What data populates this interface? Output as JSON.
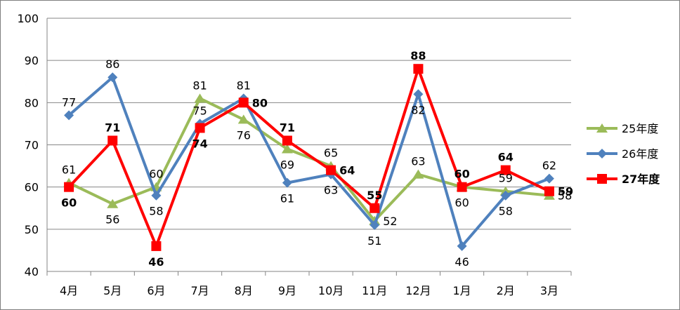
{
  "chart_data": {
    "type": "line",
    "categories": [
      "4月",
      "5月",
      "6月",
      "7月",
      "8月",
      "9月",
      "10月",
      "11月",
      "12月",
      "1月",
      "2月",
      "3月"
    ],
    "ylim": [
      40,
      100
    ],
    "yticks": [
      40,
      50,
      60,
      70,
      80,
      90,
      100
    ],
    "grid": true,
    "legend_position": "right",
    "series": [
      {
        "name": "25年度",
        "values": [
          61,
          56,
          60,
          81,
          76,
          69,
          65,
          52,
          63,
          60,
          59,
          58
        ],
        "color": "#9bbb59",
        "marker": "triangle",
        "label_bold": false,
        "label_pos": [
          "above",
          "below",
          "above",
          "above",
          "below",
          "below",
          "above",
          "right",
          "above",
          "below",
          "above",
          "right"
        ]
      },
      {
        "name": "26年度",
        "values": [
          77,
          86,
          58,
          75,
          81,
          61,
          63,
          51,
          82,
          46,
          58,
          62
        ],
        "color": "#4f81bd",
        "marker": "diamond",
        "label_bold": false,
        "label_pos": [
          "above",
          "above",
          "below",
          "above",
          "above",
          "below",
          "below",
          "below",
          "below",
          "below",
          "below",
          "above"
        ]
      },
      {
        "name": "27年度",
        "values": [
          60,
          71,
          46,
          74,
          80,
          71,
          64,
          55,
          88,
          60,
          64,
          59
        ],
        "color": "#ff0000",
        "marker": "square",
        "label_bold": true,
        "label_pos": [
          "below",
          "above",
          "below",
          "below",
          "right",
          "above",
          "right",
          "above",
          "above",
          "above",
          "above",
          "right"
        ]
      }
    ]
  }
}
